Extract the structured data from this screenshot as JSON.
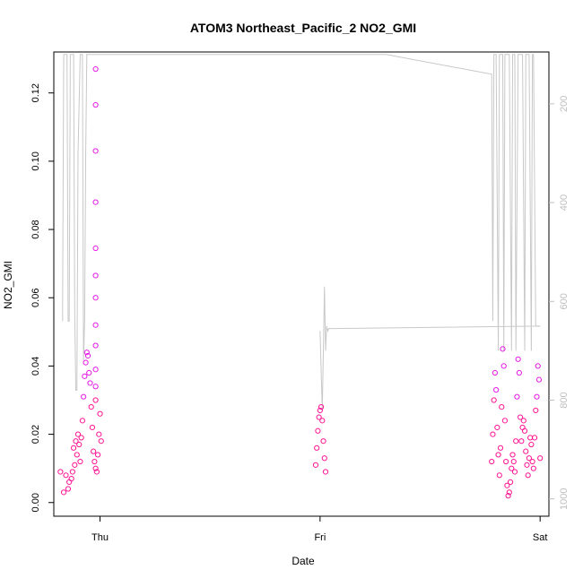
{
  "chart_data": {
    "type": "scatter",
    "title": "ATOM3 Northeast_Pacific_2 NO2_GMI",
    "xlabel": "Date",
    "ylabel": "NO2_GMI",
    "x_ticks": [
      "Thu",
      "Fri",
      "Sat"
    ],
    "y_ticks": [
      "0.00",
      "0.02",
      "0.04",
      "0.06",
      "0.08",
      "0.10",
      "0.12"
    ],
    "y_right_ticks": [
      "200",
      "400",
      "600",
      "800",
      "1000"
    ],
    "xlim": [
      -0.21,
      2.04
    ],
    "ylim": [
      -0.004,
      0.132
    ],
    "y_right_lim": [
      1035,
      95
    ],
    "y_right_reversed": true,
    "grid": false,
    "colors": {
      "points_low": "#ff1493",
      "points_high": "#e619e6",
      "pressure_line": "#c8c8c8",
      "axes": "#000000",
      "right_axis": "#bebebe"
    },
    "series": [
      {
        "type": "scatter",
        "axis": "left",
        "segments": [
          {
            "x": [
              -0.18,
              -0.165,
              -0.155,
              -0.145,
              -0.14,
              -0.13,
              -0.125,
              -0.12,
              -0.115,
              -0.11,
              -0.105,
              -0.1,
              -0.095,
              -0.09,
              -0.085,
              -0.08,
              -0.075,
              -0.07,
              -0.065,
              -0.06,
              -0.055,
              -0.05,
              -0.045,
              -0.04,
              -0.035,
              -0.03,
              -0.025,
              -0.02,
              -0.015,
              -0.01,
              -0.005,
              0.0,
              0.005
            ],
            "y": [
              0.009,
              0.003,
              0.008,
              0.004,
              0.006,
              0.007,
              0.009,
              0.016,
              0.011,
              0.018,
              0.014,
              0.02,
              0.017,
              0.012,
              0.019,
              0.024,
              0.031,
              0.037,
              0.041,
              0.044,
              0.043,
              0.038,
              0.035,
              0.028,
              0.022,
              0.015,
              0.012,
              0.01,
              0.009,
              0.014,
              0.02,
              0.026,
              0.018
            ]
          },
          {
            "x": [
              -0.02,
              -0.02,
              -0.02,
              -0.02,
              -0.02,
              -0.02,
              -0.02,
              -0.02,
              -0.02,
              -0.02,
              -0.02,
              -0.02
            ],
            "y": [
              0.127,
              0.1165,
              0.103,
              0.088,
              0.0745,
              0.0665,
              0.06,
              0.052,
              0.046,
              0.039,
              0.034,
              0.03
            ]
          },
          {
            "x": [
              0.98,
              0.985,
              0.99,
              0.995,
              1.0,
              1.005,
              1.01,
              1.015,
              1.02,
              1.025
            ],
            "y": [
              0.011,
              0.016,
              0.021,
              0.025,
              0.027,
              0.028,
              0.024,
              0.018,
              0.013,
              0.009
            ]
          },
          {
            "x": [
              1.78,
              1.785,
              1.79,
              1.795,
              1.8,
              1.805,
              1.81,
              1.815,
              1.82,
              1.825,
              1.83,
              1.835,
              1.84,
              1.845,
              1.85,
              1.855,
              1.86,
              1.865,
              1.87,
              1.875,
              1.88,
              1.885,
              1.89,
              1.895,
              1.9,
              1.905,
              1.91,
              1.915,
              1.92,
              1.925,
              1.93,
              1.935,
              1.94,
              1.945,
              1.95,
              1.955,
              1.96,
              1.965,
              1.97,
              1.975,
              1.98,
              1.985,
              1.99,
              1.995,
              2.0
            ],
            "y": [
              0.012,
              0.02,
              0.03,
              0.038,
              0.033,
              0.022,
              0.014,
              0.008,
              0.016,
              0.028,
              0.045,
              0.04,
              0.024,
              0.012,
              0.005,
              0.002,
              0.003,
              0.006,
              0.01,
              0.014,
              0.012,
              0.009,
              0.018,
              0.031,
              0.042,
              0.038,
              0.025,
              0.018,
              0.022,
              0.024,
              0.021,
              0.015,
              0.011,
              0.008,
              0.013,
              0.019,
              0.017,
              0.012,
              0.01,
              0.019,
              0.027,
              0.031,
              0.04,
              0.036,
              0.013
            ]
          }
        ]
      },
      {
        "type": "line",
        "axis": "right",
        "x": [
          -0.17,
          -0.17,
          -0.165,
          -0.16,
          -0.155,
          -0.15,
          -0.145,
          -0.14,
          -0.135,
          -0.13,
          -0.12,
          -0.115,
          -0.11,
          -0.105,
          -0.1,
          -0.09,
          -0.085,
          -0.08,
          -0.075,
          -0.07,
          -0.065,
          -0.06,
          -0.05,
          -0.04,
          -0.035,
          -0.03,
          -0.025,
          -0.02,
          1.3,
          1.78,
          1.785,
          1.79,
          1.795,
          1.8,
          1.81,
          1.815,
          1.82,
          1.83,
          1.835,
          1.84,
          1.85,
          1.86,
          1.87,
          1.875,
          1.88,
          1.885,
          1.89,
          1.9,
          1.91,
          1.92,
          1.93,
          1.935,
          1.94,
          1.95,
          1.96,
          1.965,
          1.97,
          1.98,
          1.99,
          2.0
        ],
        "y": [
          640,
          600,
          100,
          100,
          100,
          100,
          640,
          640,
          100,
          100,
          100,
          620,
          780,
          780,
          300,
          100,
          100,
          100,
          720,
          640,
          300,
          100,
          100,
          100,
          100,
          100,
          100,
          100,
          100,
          140,
          640,
          100,
          100,
          100,
          700,
          100,
          100,
          100,
          700,
          100,
          100,
          100,
          700,
          100,
          100,
          100,
          700,
          100,
          100,
          100,
          700,
          100,
          100,
          100,
          700,
          100,
          100,
          650,
          650,
          650
        ]
      },
      {
        "type": "line",
        "axis": "right",
        "x": [
          1.0,
          1.01,
          1.015,
          1.02,
          1.025,
          1.03,
          1.035,
          1.04,
          1.05,
          2.0
        ],
        "y": [
          660,
          820,
          700,
          570,
          700,
          650,
          660,
          655,
          655,
          650
        ]
      }
    ]
  }
}
